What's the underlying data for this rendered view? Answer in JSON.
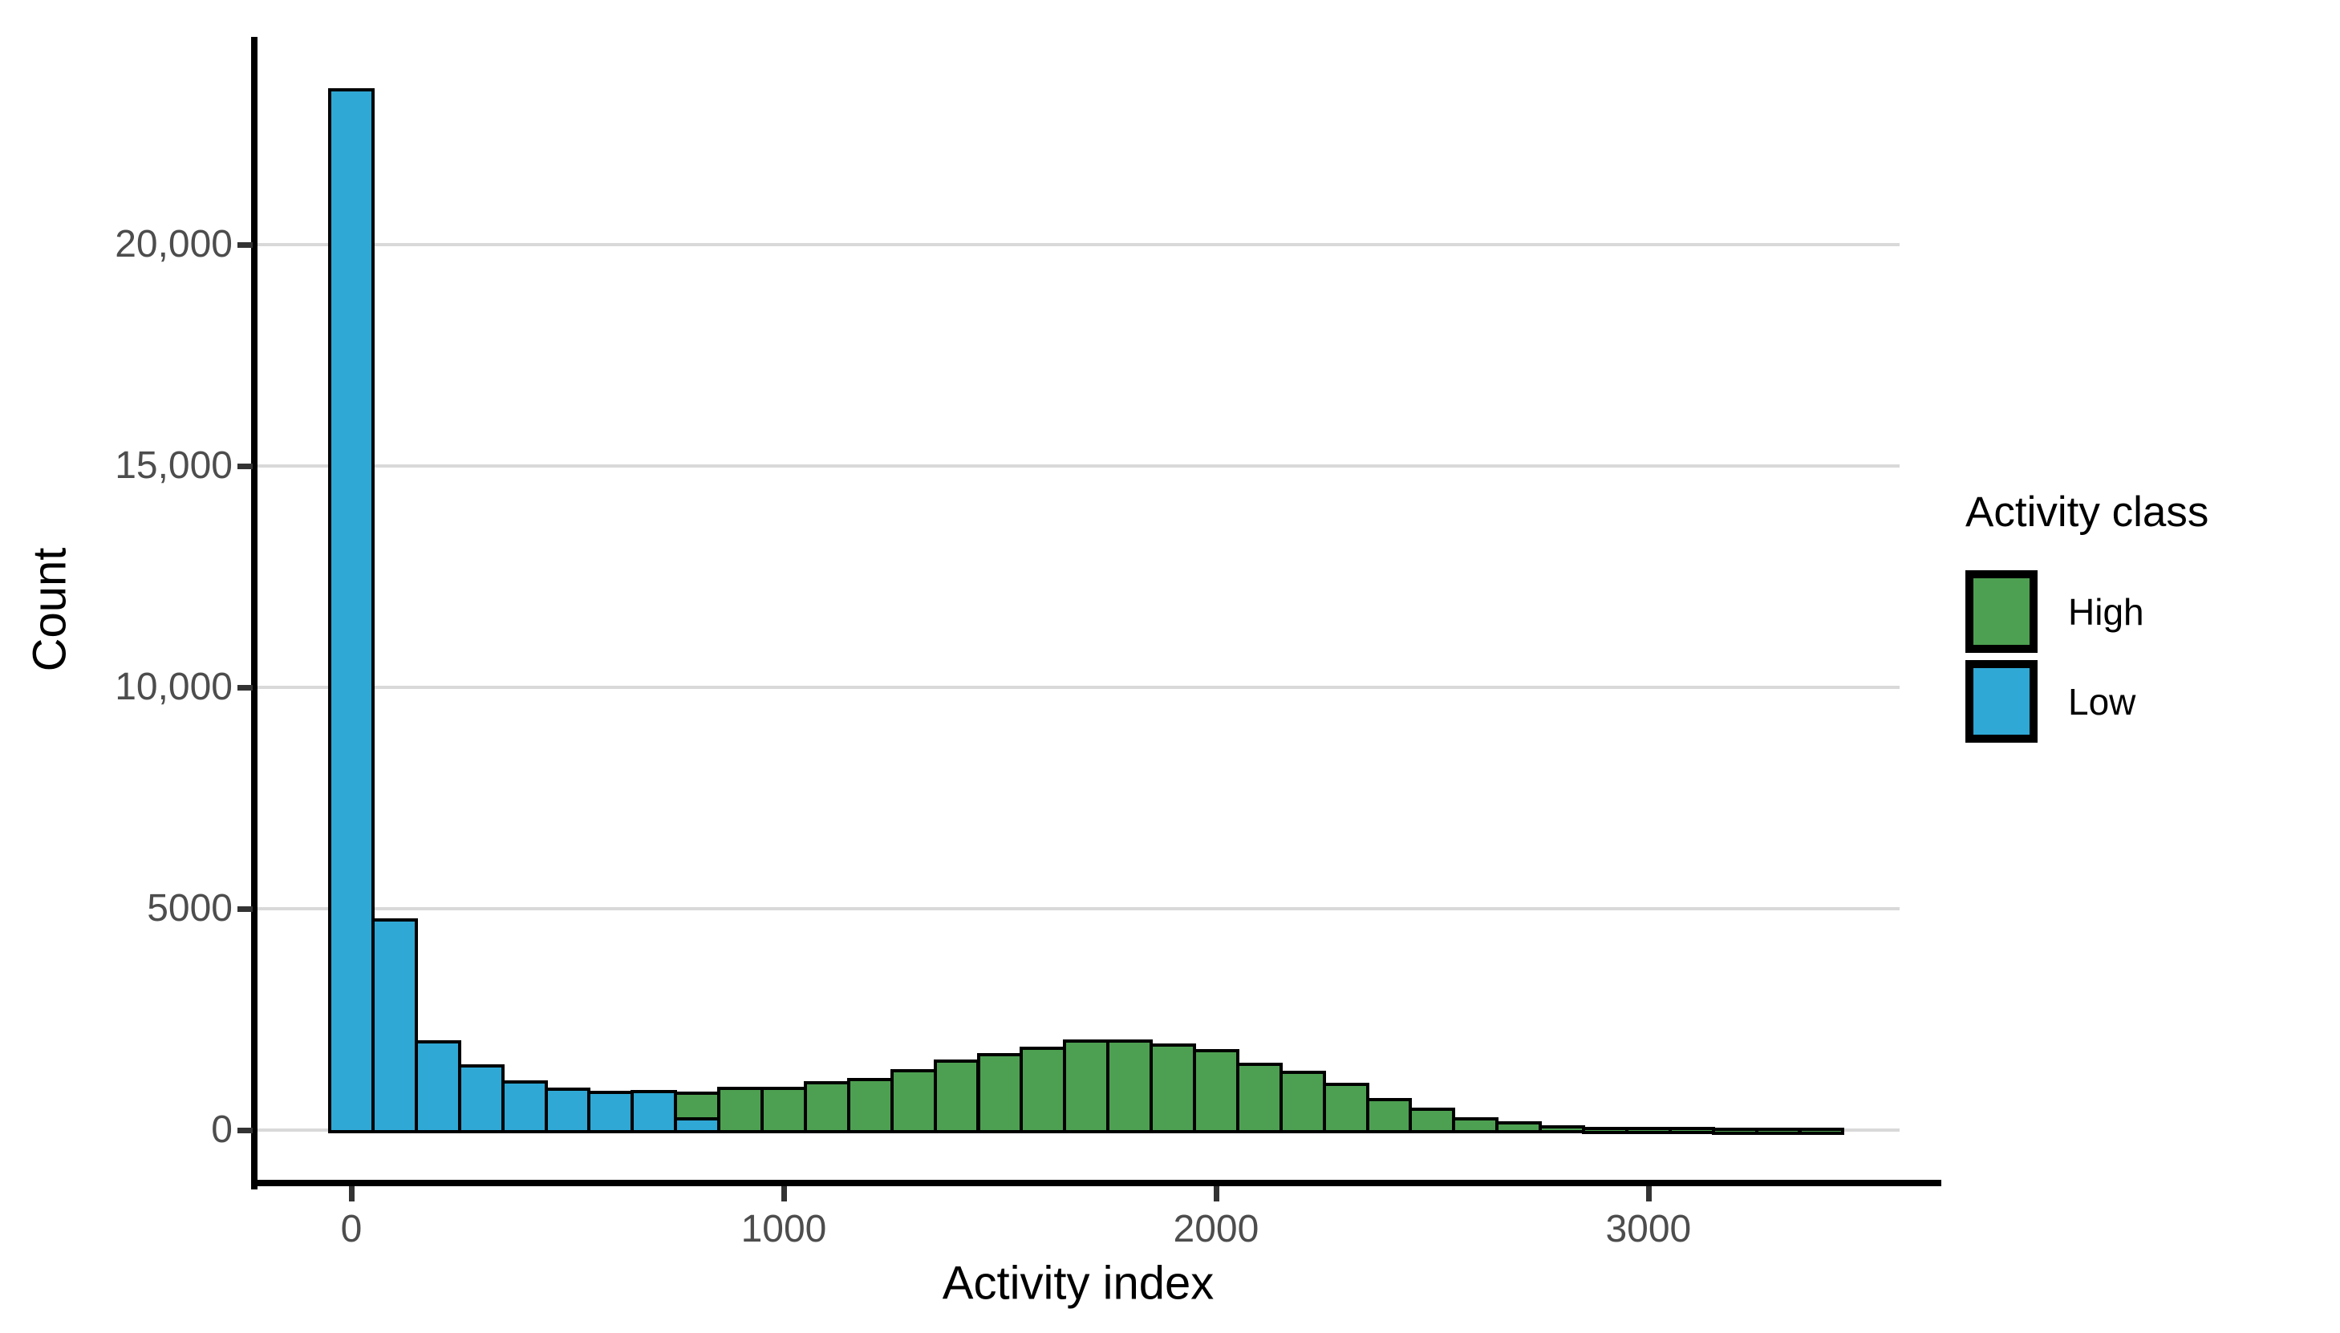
{
  "chart_data": {
    "type": "bar",
    "subtype": "stacked-histogram",
    "title": "",
    "xlabel": "Activity index",
    "ylabel": "Count",
    "bin_width": 100,
    "bin_centers": [
      0,
      100,
      200,
      300,
      400,
      500,
      600,
      700,
      800,
      900,
      1000,
      1100,
      1200,
      1300,
      1400,
      1500,
      1600,
      1700,
      1800,
      1900,
      2000,
      2100,
      2200,
      2300,
      2400,
      2500,
      2600,
      2700,
      2800,
      2900,
      3000,
      3100,
      3200,
      3300,
      3400
    ],
    "series": [
      {
        "name": "High",
        "color": "#4DA051",
        "values": [
          0,
          0,
          0,
          0,
          0,
          0,
          0,
          0,
          580,
          940,
          950,
          1070,
          1150,
          1340,
          1550,
          1700,
          1850,
          2020,
          2010,
          1920,
          1790,
          1490,
          1300,
          1030,
          680,
          470,
          250,
          160,
          80,
          45,
          35,
          30,
          25,
          20,
          15
        ]
      },
      {
        "name": "Low",
        "color": "#2FA8D5",
        "values": [
          23500,
          4750,
          2000,
          1450,
          1080,
          930,
          850,
          870,
          250,
          0,
          0,
          0,
          0,
          0,
          0,
          0,
          0,
          0,
          0,
          0,
          0,
          0,
          0,
          0,
          0,
          0,
          0,
          0,
          0,
          0,
          0,
          0,
          0,
          0,
          0
        ]
      }
    ],
    "stack_order": [
      "Low",
      "High"
    ],
    "bar_stroke_color": "#000000",
    "x_ticks": [
      0,
      1000,
      2000,
      3000
    ],
    "x_tick_labels": [
      "0",
      "1000",
      "2000",
      "3000"
    ],
    "y_ticks": [
      0,
      5000,
      10000,
      15000,
      20000
    ],
    "y_tick_labels": [
      "0",
      "5000",
      "10,000",
      "15,000",
      "20,000"
    ],
    "x_domain": [
      -219,
      3581
    ],
    "y_domain": [
      -1196,
      24700
    ],
    "grid": "horizontal gridlines only",
    "gridline_color": "#D9D9D9",
    "legend": {
      "title": "Activity class",
      "position": "right",
      "entries": [
        {
          "label": "High",
          "color": "#4DA051"
        },
        {
          "label": "Low",
          "color": "#2FA8D5"
        }
      ]
    }
  }
}
